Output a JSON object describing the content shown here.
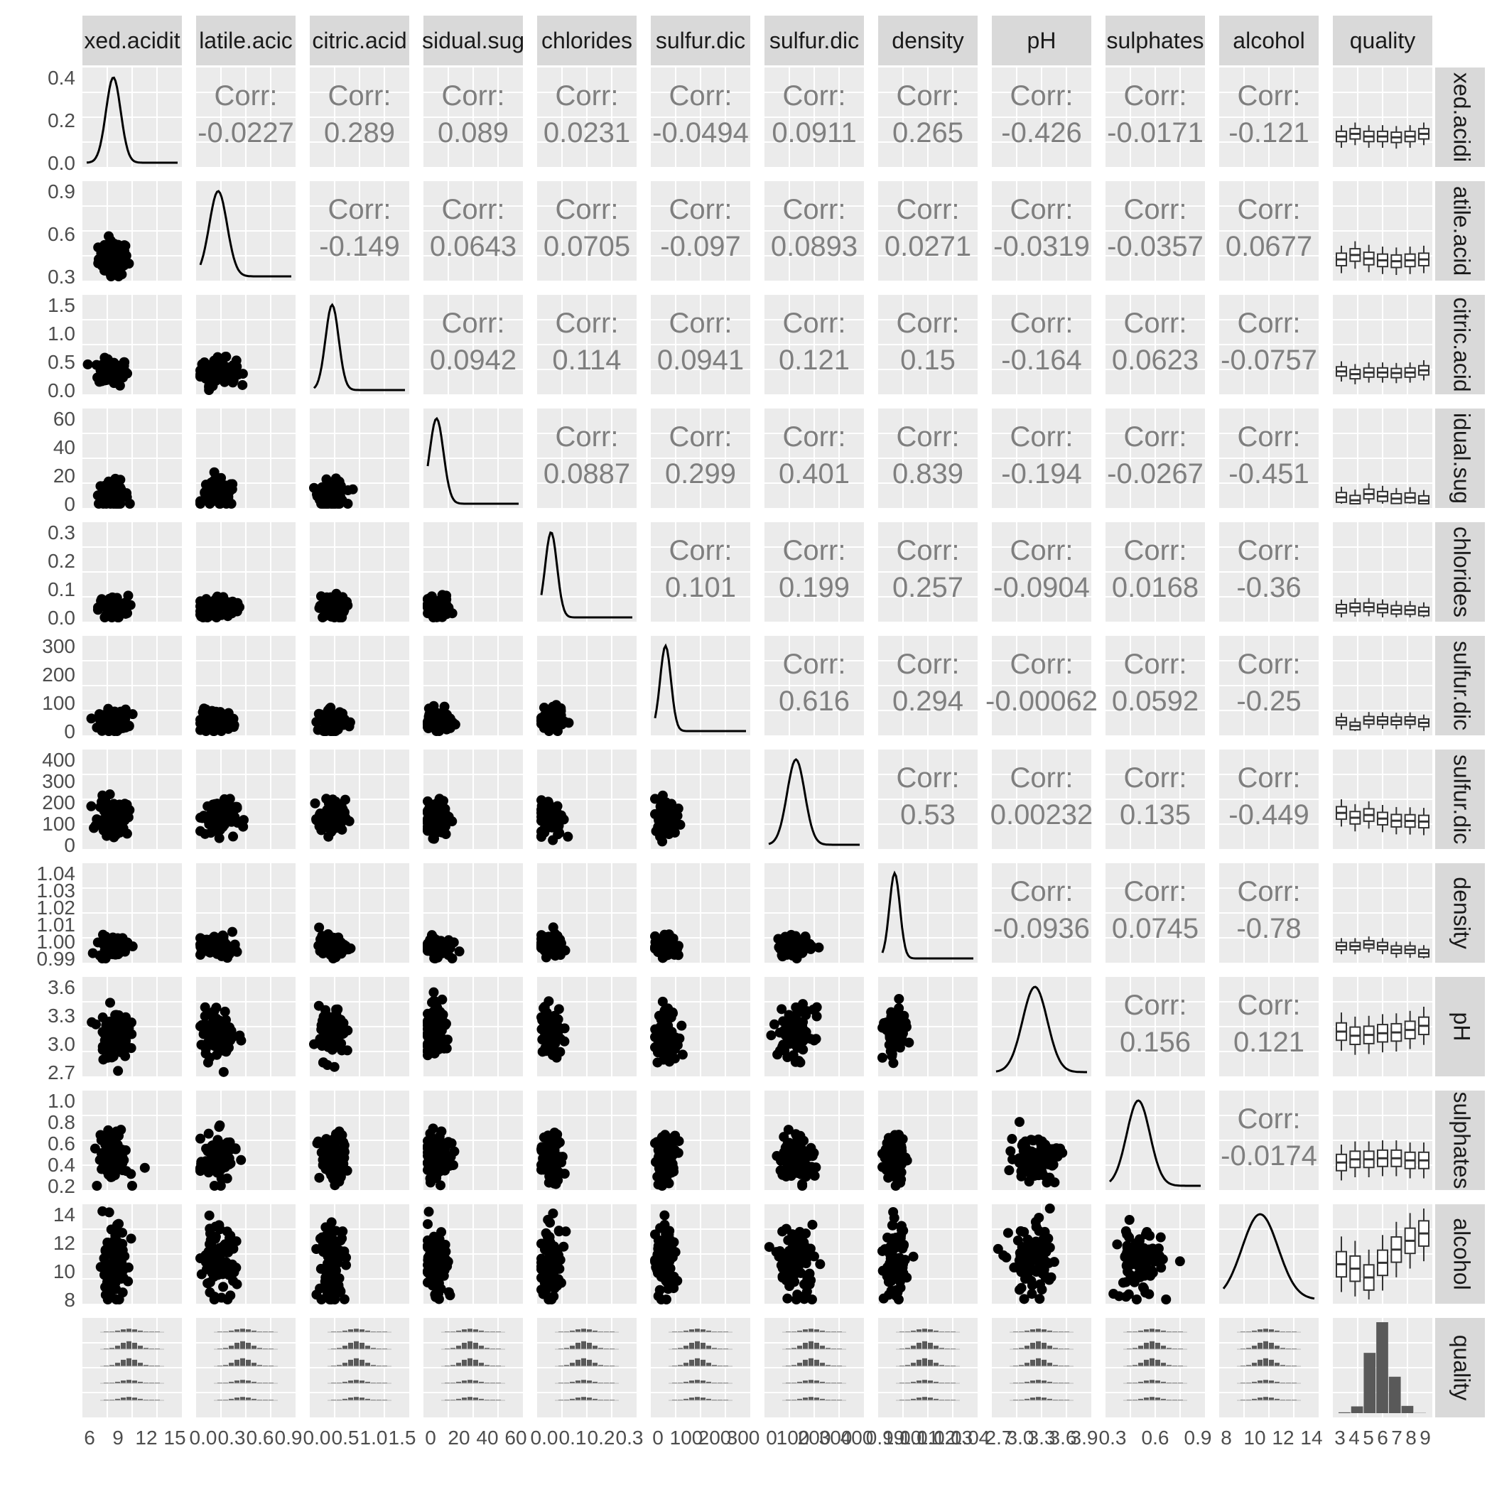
{
  "chart_data": {
    "type": "scatter",
    "variables": [
      "fixed.acidity",
      "volatile.acidity",
      "citric.acid",
      "residual.sugar",
      "chlorides",
      "free.sulfur.dioxide",
      "total.sulfur.dioxide",
      "density",
      "pH",
      "sulphates",
      "alcohol",
      "quality"
    ],
    "column_labels": [
      "xed.acidit",
      "latile.acic",
      "citric.acid",
      "sidual.sug",
      "chlorides",
      "sulfur.dic",
      "sulfur.dic",
      "density",
      "pH",
      "sulphates",
      "alcohol",
      "quality"
    ],
    "row_labels": [
      "xed.acidi",
      "atile.acid",
      "citric.acid",
      "idual.sug",
      "chlorides",
      "sulfur.dic",
      "sulfur.dic",
      "density",
      "pH",
      "sulphates",
      "alcohol",
      "quality"
    ],
    "corr_label": "Corr:",
    "correlations": [
      [
        null,
        "-0.0227",
        "0.289",
        "0.089",
        "0.0231",
        "-0.0494",
        "0.0911",
        "0.265",
        "-0.426",
        "-0.0171",
        "-0.121"
      ],
      [
        null,
        null,
        "-0.149",
        "0.0643",
        "0.0705",
        "-0.097",
        "0.0893",
        "0.0271",
        "-0.0319",
        "-0.0357",
        "0.0677"
      ],
      [
        null,
        null,
        null,
        "0.0942",
        "0.114",
        "0.0941",
        "0.121",
        "0.15",
        "-0.164",
        "0.0623",
        "-0.0757"
      ],
      [
        null,
        null,
        null,
        null,
        "0.0887",
        "0.299",
        "0.401",
        "0.839",
        "-0.194",
        "-0.0267",
        "-0.451"
      ],
      [
        null,
        null,
        null,
        null,
        null,
        "0.101",
        "0.199",
        "0.257",
        "-0.0904",
        "0.0168",
        "-0.36"
      ],
      [
        null,
        null,
        null,
        null,
        null,
        null,
        "0.616",
        "0.294",
        "-0.00062",
        "0.0592",
        "-0.25"
      ],
      [
        null,
        null,
        null,
        null,
        null,
        null,
        null,
        "0.53",
        "0.00232",
        "0.135",
        "-0.449"
      ],
      [
        null,
        null,
        null,
        null,
        null,
        null,
        null,
        null,
        "-0.0936",
        "0.0745",
        "-0.78"
      ],
      [
        null,
        null,
        null,
        null,
        null,
        null,
        null,
        null,
        null,
        "0.156",
        "0.121"
      ],
      [
        null,
        null,
        null,
        null,
        null,
        null,
        null,
        null,
        null,
        null,
        "-0.0174"
      ]
    ],
    "ranges": [
      [
        3.8,
        14.2
      ],
      [
        0.08,
        1.1
      ],
      [
        0,
        1.66
      ],
      [
        0,
        65.8
      ],
      [
        0.009,
        0.346
      ],
      [
        2,
        289
      ],
      [
        9,
        440
      ],
      [
        0.987,
        1.039
      ],
      [
        2.72,
        3.82
      ],
      [
        0.22,
        1.08
      ],
      [
        8,
        14.2
      ],
      [
        3,
        9
      ]
    ],
    "y_ticks": [
      [
        "0.0",
        "0.2",
        "0.4"
      ],
      [
        "0.3",
        "0.6",
        "0.9"
      ],
      [
        "0.0",
        "0.5",
        "1.0",
        "1.5"
      ],
      [
        "0",
        "20",
        "40",
        "60"
      ],
      [
        "0.0",
        "0.1",
        "0.2",
        "0.3"
      ],
      [
        "0",
        "100",
        "200",
        "300"
      ],
      [
        "0",
        "100",
        "200",
        "300",
        "400"
      ],
      [
        "0.99",
        "1.00",
        "1.01",
        "1.02",
        "1.03",
        "1.04"
      ],
      [
        "2.7",
        "3.0",
        "3.3",
        "3.6"
      ],
      [
        "0.2",
        "0.4",
        "0.6",
        "0.8",
        "1.0"
      ],
      [
        "8",
        "10",
        "12",
        "14"
      ],
      []
    ],
    "x_ticks": [
      [
        "6",
        "9",
        "12",
        "15"
      ],
      [
        "0.0",
        "0.3",
        "0.6",
        "0.9"
      ],
      [
        "0.0",
        "0.5",
        "1.0",
        "1.5"
      ],
      [
        "0",
        "20",
        "40",
        "60"
      ],
      [
        "0.0",
        "0.1",
        "0.2",
        "0.3"
      ],
      [
        "0",
        "100",
        "200",
        "300"
      ],
      [
        "0",
        "100",
        "200",
        "300",
        "400"
      ],
      [
        "0.99",
        "1.00",
        "1.01",
        "1.02",
        "1.03",
        "1.04"
      ],
      [
        "2.7",
        "3.0",
        "3.3",
        "3.6",
        "3.9"
      ],
      [
        "0.3",
        "0.6",
        "0.9"
      ],
      [
        "8",
        "10",
        "12",
        "14"
      ],
      [
        "3",
        "4",
        "5",
        "6",
        "7",
        "8",
        "9"
      ]
    ],
    "quality_levels": [
      3,
      4,
      5,
      6,
      7,
      8,
      9
    ],
    "quality_counts": [
      20,
      163,
      1457,
      2198,
      880,
      175,
      5
    ],
    "quality_box_medians": [
      [
        6.8,
        7.1,
        6.8,
        6.8,
        6.7,
        6.8,
        7.1
      ],
      [
        0.27,
        0.32,
        0.28,
        0.26,
        0.25,
        0.26,
        0.27
      ],
      [
        0.34,
        0.29,
        0.32,
        0.32,
        0.31,
        0.32,
        0.36
      ],
      [
        4.6,
        2.5,
        7.0,
        5.3,
        3.7,
        4.3,
        2.2
      ],
      [
        0.041,
        0.046,
        0.047,
        0.042,
        0.037,
        0.036,
        0.031
      ],
      [
        33,
        18,
        36,
        35,
        34,
        35,
        28
      ],
      [
        160,
        137,
        150,
        133,
        123,
        122,
        119
      ],
      [
        0.994,
        0.994,
        0.995,
        0.994,
        0.992,
        0.992,
        0.99
      ],
      [
        3.21,
        3.16,
        3.17,
        3.19,
        3.2,
        3.23,
        3.28
      ],
      [
        0.44,
        0.47,
        0.47,
        0.48,
        0.48,
        0.46,
        0.46
      ],
      [
        10.4,
        10.1,
        9.5,
        10.5,
        11.4,
        12.0,
        12.5
      ]
    ]
  }
}
